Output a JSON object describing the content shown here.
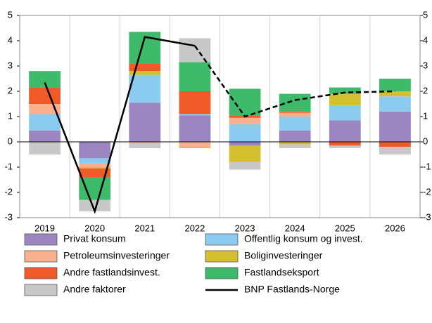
{
  "chart_data": {
    "type": "bar",
    "categories": [
      "2019",
      "2020",
      "2021",
      "2022",
      "2023",
      "2024",
      "2025",
      "2026"
    ],
    "series": [
      {
        "name": "Privat konsum",
        "color": "#9b86c2",
        "values": [
          0.45,
          -0.65,
          1.55,
          1.05,
          -0.15,
          0.45,
          0.85,
          1.2
        ]
      },
      {
        "name": "Offentlig konsum og invest.",
        "color": "#8ccbf0",
        "values": [
          0.65,
          -0.2,
          1.1,
          0.05,
          0.7,
          0.55,
          0.6,
          0.6
        ]
      },
      {
        "name": "Petroleumsinvesteringer",
        "color": "#f8b08f",
        "values": [
          0.4,
          -0.15,
          -0.05,
          -0.2,
          0.25,
          0.15,
          0,
          0
        ]
      },
      {
        "name": "Boliginvesteringer",
        "color": "#d4bf30",
        "values": [
          0,
          -0.05,
          0.15,
          -0.05,
          -0.65,
          -0.1,
          0.45,
          0.2
        ]
      },
      {
        "name": "Andre fastlandsinvest.",
        "color": "#f05a28",
        "values": [
          0.65,
          -0.35,
          0.3,
          0.9,
          0.1,
          0.05,
          -0.15,
          -0.2
        ]
      },
      {
        "name": "Fastlandseksport",
        "color": "#3dbb6b",
        "values": [
          0.65,
          -0.9,
          1.25,
          1.15,
          1.05,
          0.7,
          0.25,
          0.5
        ]
      },
      {
        "name": "Andre faktorer",
        "color": "#c8c8c8",
        "values": [
          -0.5,
          -0.45,
          -0.2,
          0.95,
          -0.3,
          -0.15,
          -0.1,
          -0.3
        ]
      }
    ],
    "line": {
      "name": "BNP Fastlands-Norge",
      "color": "#000000",
      "values": [
        2.35,
        -2.75,
        4.15,
        3.8,
        1.0,
        1.65,
        1.95,
        2.0
      ],
      "dashed_from": 3
    },
    "ylim": [
      -3,
      5
    ],
    "yticks": [
      -3,
      -2,
      -1,
      0,
      1,
      2,
      3,
      4,
      5
    ]
  }
}
